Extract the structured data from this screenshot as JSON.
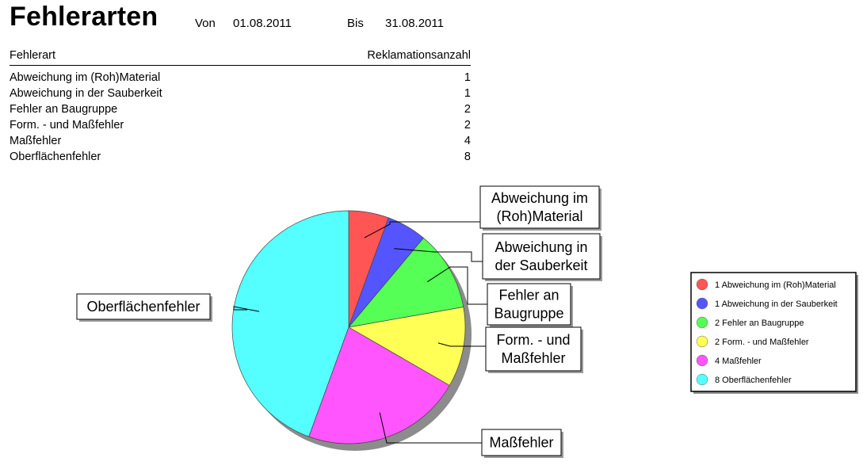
{
  "header": {
    "title": "Fehlerarten",
    "von_label": "Von",
    "von_date": "01.08.2011",
    "bis_label": "Bis",
    "bis_date": "31.08.2011"
  },
  "table": {
    "col_type": "Fehlerart",
    "col_count": "Reklamationsanzahl",
    "rows": [
      {
        "label": "Abweichung im (Roh)Material",
        "count": "1"
      },
      {
        "label": "Abweichung in der Sauberkeit",
        "count": "1"
      },
      {
        "label": "Fehler an Baugruppe",
        "count": "2"
      },
      {
        "label": "Form. - und Maßfehler",
        "count": "2"
      },
      {
        "label": "Maßfehler",
        "count": "4"
      },
      {
        "label": "Oberflächenfehler",
        "count": "8"
      }
    ]
  },
  "chart_data": {
    "type": "pie",
    "categories": [
      "Abweichung im (Roh)Material",
      "Abweichung in der Sauberkeit",
      "Fehler an Baugruppe",
      "Form. - und Maßfehler",
      "Maßfehler",
      "Oberflächenfehler"
    ],
    "values": [
      1,
      1,
      2,
      2,
      4,
      8
    ],
    "colors": [
      "#ff5555",
      "#5555ff",
      "#55ff55",
      "#ffff55",
      "#ff55ff",
      "#55ffff"
    ],
    "callout_labels": [
      [
        "Abweichung im",
        "(Roh)Material"
      ],
      [
        "Abweichung in",
        "der Sauberkeit"
      ],
      [
        "Fehler an",
        "Baugruppe"
      ],
      [
        "Form. - und",
        "Maßfehler"
      ],
      [
        "Maßfehler"
      ],
      [
        "Oberflächenfehler"
      ]
    ],
    "legend": [
      "1 Abweichung im (Roh)Material",
      "1 Abweichung in der Sauberkeit",
      "2 Fehler an Baugruppe",
      "2 Form. - und Maßfehler",
      "4 Maßfehler",
      "8 Oberflächenfehler"
    ],
    "legend_position": "right",
    "start_angle": "12 o'clock",
    "direction": "clockwise",
    "shadow": true
  }
}
